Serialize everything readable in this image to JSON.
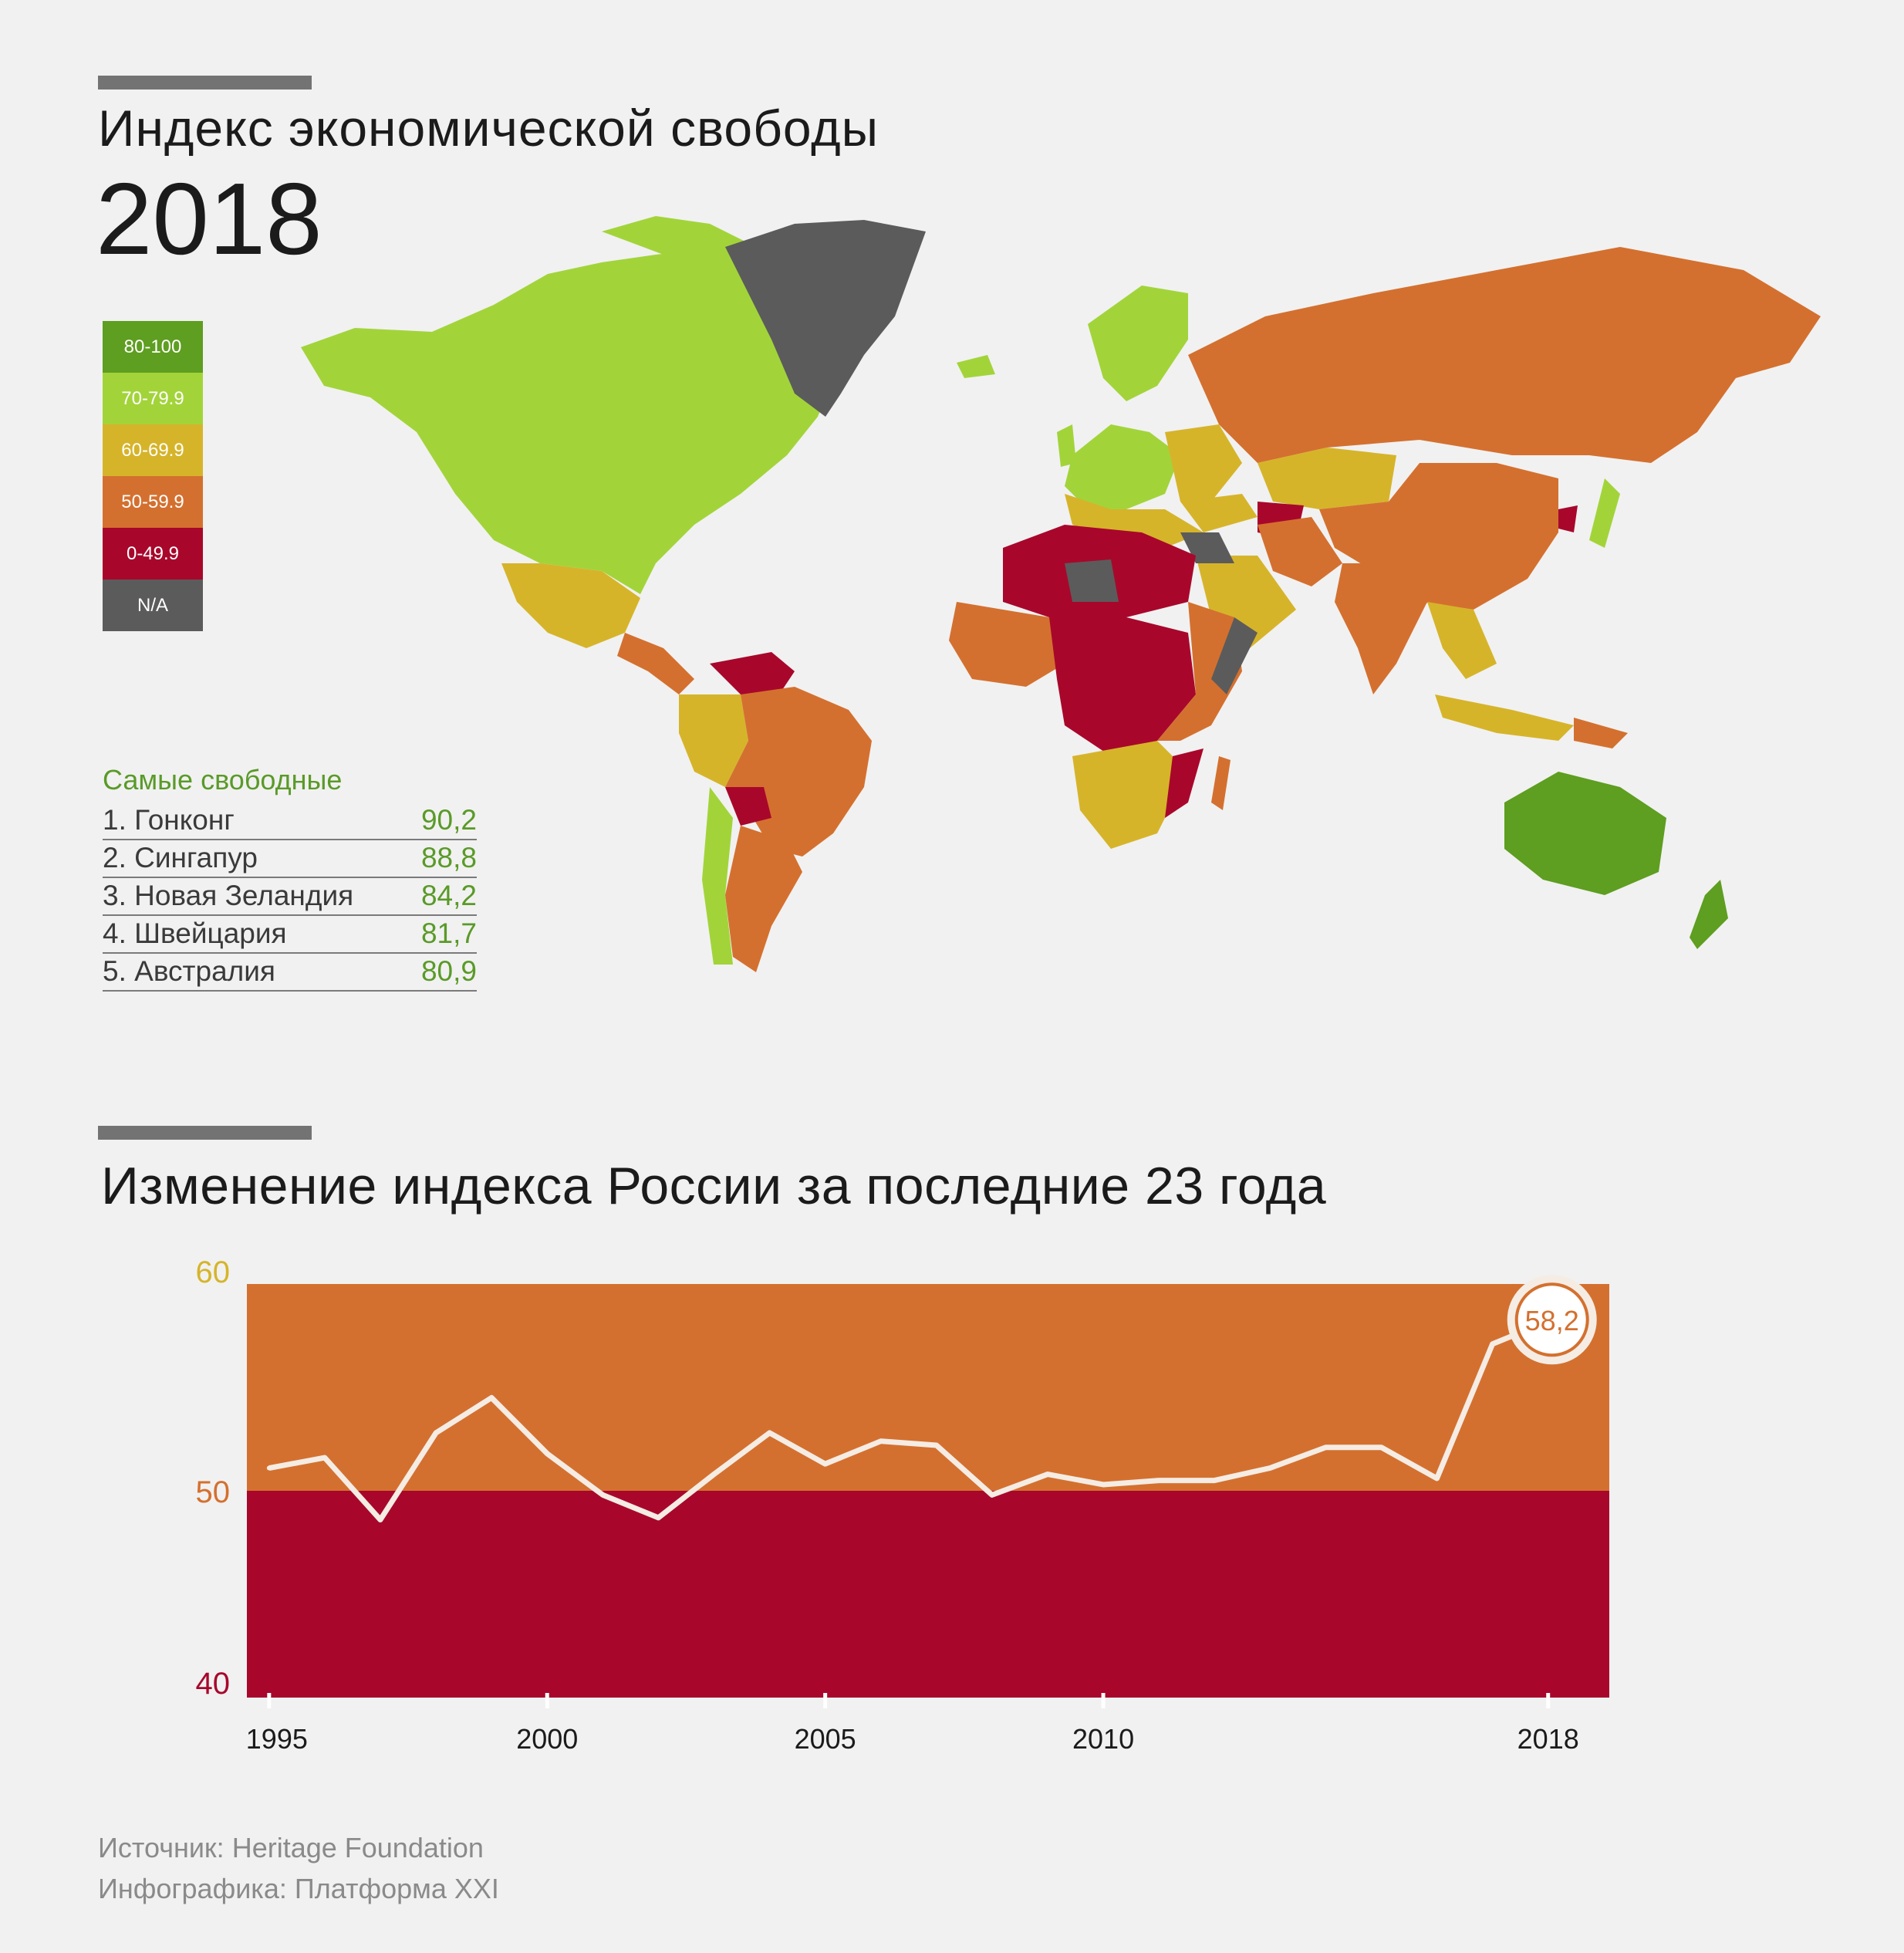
{
  "header": {
    "title": "Индекс экономической свободы",
    "year": "2018"
  },
  "legend": [
    {
      "label": "80-100",
      "color": "#5e9e20"
    },
    {
      "label": "70-79.9",
      "color": "#a2d43a"
    },
    {
      "label": "60-69.9",
      "color": "#d6b42a"
    },
    {
      "label": "50-59.9",
      "color": "#d4702f"
    },
    {
      "label": "0-49.9",
      "color": "#a8072b"
    },
    {
      "label": "N/A",
      "color": "#5b5b5b"
    }
  ],
  "freest": {
    "title": "Самые свободные",
    "items": [
      {
        "name": "1. Гонконг",
        "score": "90,2"
      },
      {
        "name": "2. Сингапур",
        "score": "88,8"
      },
      {
        "name": "3. Новая Зеландия",
        "score": "84,2"
      },
      {
        "name": "4. Швейцария",
        "score": "81,7"
      },
      {
        "name": "5. Австралия",
        "score": "80,9"
      }
    ]
  },
  "chart_title": "Изменение индекса России за последние 23 года",
  "chart_data": {
    "type": "line",
    "title": "Изменение индекса России за последние 23 года",
    "x": [
      1995,
      1996,
      1997,
      1998,
      1999,
      2000,
      2001,
      2002,
      2003,
      2004,
      2005,
      2006,
      2007,
      2008,
      2009,
      2010,
      2011,
      2012,
      2013,
      2014,
      2015,
      2016,
      2017,
      2018
    ],
    "series": [
      {
        "values": [
          51.1,
          51.6,
          48.6,
          52.8,
          54.5,
          51.8,
          49.8,
          48.7,
          50.8,
          52.8,
          51.3,
          52.4,
          52.2,
          49.8,
          50.8,
          50.3,
          50.5,
          50.5,
          51.1,
          52.1,
          52.1,
          50.6,
          57.1,
          58.2
        ]
      }
    ],
    "ylim": [
      40,
      60
    ],
    "yticks": [
      "60",
      "50",
      "40"
    ],
    "xticks": [
      "1995",
      "2000",
      "2005",
      "2010",
      "2018"
    ],
    "bands": [
      {
        "from": 50,
        "to": 60,
        "color": "#d4702f"
      },
      {
        "from": 40,
        "to": 50,
        "color": "#a8072b"
      }
    ],
    "highlight": {
      "year": 2018,
      "label": "58,2"
    },
    "line_color": "#f5ece4",
    "ytick_colors": [
      "#d6b42a",
      "#d4702f",
      "#a8072b"
    ]
  },
  "footer": {
    "source": "Источник: Heritage Foundation",
    "credit": "Инфографика: Платформа XXI"
  }
}
